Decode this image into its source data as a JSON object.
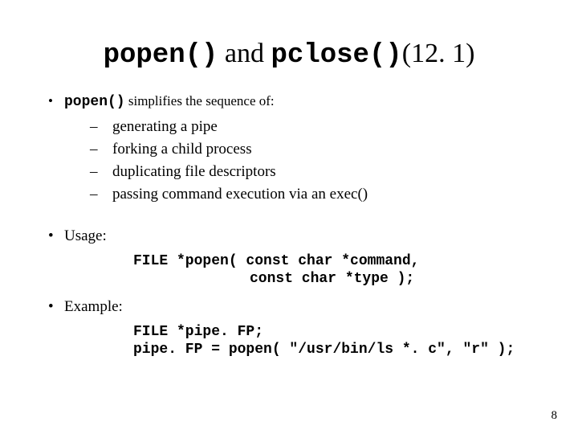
{
  "title": {
    "code1": "popen()",
    "mid": " and ",
    "code2": "pclose()",
    "ref": "(12. 1)"
  },
  "intro": {
    "code": "popen()",
    "text": " simplifies the sequence of:"
  },
  "sub": [
    "generating a pipe",
    "forking a child process",
    "duplicating file descriptors",
    "passing command execution via an exec()"
  ],
  "usage": {
    "label": "Usage:",
    "line1": "FILE *popen( const char *command,",
    "line2": "const char *type );"
  },
  "example": {
    "label": "Example:",
    "line1": "FILE *pipe. FP;",
    "line2": "pipe. FP = popen( \"/usr/bin/ls *. c\", \"r\" );"
  },
  "pagenum": "8",
  "colors": {
    "bg": "#ffffff",
    "text": "#000000"
  }
}
